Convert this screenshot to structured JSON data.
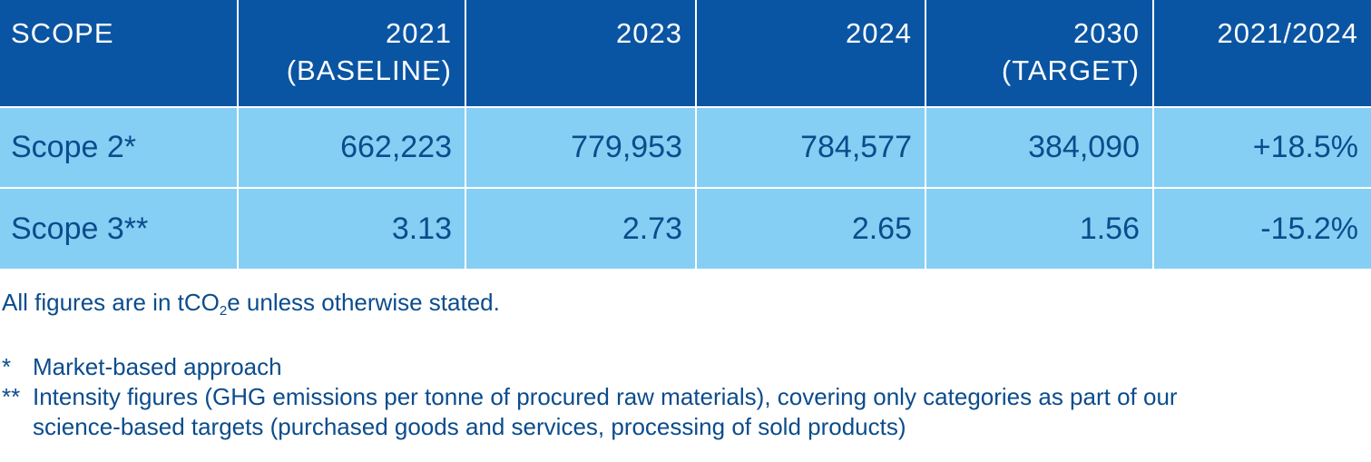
{
  "table": {
    "headers": [
      {
        "line1": "SCOPE",
        "line2": ""
      },
      {
        "line1": "2021",
        "line2": "(BASELINE)"
      },
      {
        "line1": "2023",
        "line2": ""
      },
      {
        "line1": "2024",
        "line2": ""
      },
      {
        "line1": "2030",
        "line2": "(TARGET)"
      },
      {
        "line1": "2021/2024",
        "line2": ""
      }
    ],
    "rows": [
      {
        "scope": "Scope 2*",
        "y2021": "662,223",
        "y2023": "779,953",
        "y2024": "784,577",
        "y2030": "384,090",
        "change": "+18.5%"
      },
      {
        "scope": "Scope 3**",
        "y2021": "3.13",
        "y2023": "2.73",
        "y2024": "2.65",
        "y2030": "1.56",
        "change": "-15.2%"
      }
    ]
  },
  "unit_note": {
    "before": "All figures are in tCO",
    "subscript": "2",
    "after": "e unless otherwise stated."
  },
  "footnotes": [
    {
      "mark": "*",
      "text": "Market-based approach"
    },
    {
      "mark": "**",
      "text": "Intensity figures (GHG emissions per tonne of procured raw materials), covering only categories as part of our science-based targets (purchased goods and services, processing of sold products)"
    }
  ],
  "colors": {
    "header_bg": "#0a55a3",
    "row_bg": "#86cff4",
    "text": "#0b4c8c"
  }
}
